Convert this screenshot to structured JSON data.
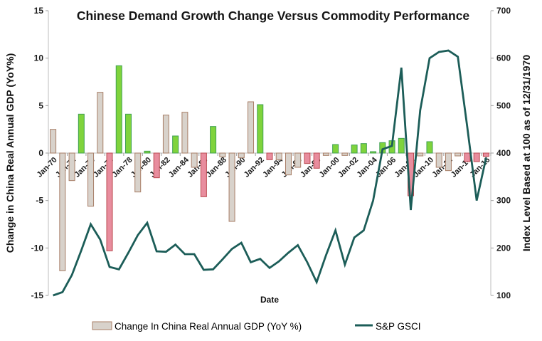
{
  "title": "Chinese Demand Growth Change Versus Commodity Performance",
  "background": "#FFFFFF",
  "palette": {
    "bar_tan_fill": "#D8D2CB",
    "bar_tan_stroke": "#A87E66",
    "bar_green_fill": "#7FD33C",
    "bar_green_stroke": "#3FA151",
    "bar_pink_fill": "#E88D9E",
    "bar_pink_stroke": "#BB4A50",
    "line_color": "#1C5D58",
    "axis_color": "#BDBDBD"
  },
  "chart_data": {
    "type": "combo-bar-line",
    "title": "Chinese Demand Growth Change Versus Commodity Performance",
    "years": [
      1970,
      1971,
      1972,
      1973,
      1974,
      1975,
      1976,
      1977,
      1978,
      1979,
      1980,
      1981,
      1982,
      1983,
      1984,
      1985,
      1986,
      1987,
      1988,
      1989,
      1990,
      1991,
      1992,
      1993,
      1994,
      1995,
      1996,
      1997,
      1998,
      1999,
      2000,
      2001,
      2002,
      2003,
      2004,
      2005,
      2006,
      2007,
      2008,
      2009,
      2010,
      2011,
      2012,
      2013,
      2014,
      2015,
      2016
    ],
    "bar_series": {
      "name": "Change In China Real Annual GDP (YoY %)",
      "axis": "left",
      "values": [
        2.5,
        -12.4,
        -2.9,
        4.1,
        -5.6,
        6.4,
        -10.3,
        9.2,
        4.1,
        -4.1,
        0.2,
        -2.6,
        4.0,
        1.8,
        4.3,
        -1.5,
        -4.6,
        2.8,
        -0.4,
        -7.2,
        -0.5,
        5.4,
        5.1,
        -0.7,
        -0.7,
        -2.3,
        -1.5,
        -1.1,
        -1.6,
        -0.25,
        0.9,
        -0.25,
        0.85,
        1.0,
        0.15,
        1.1,
        1.3,
        1.55,
        -4.5,
        -0.3,
        1.2,
        -1.5,
        -1.85,
        -0.3,
        -0.9,
        -0.9,
        -0.35
      ],
      "color_keys": [
        "tan",
        "tan",
        "tan",
        "green",
        "tan",
        "tan",
        "pink",
        "green",
        "green",
        "tan",
        "green",
        "pink",
        "tan",
        "green",
        "tan",
        "tan",
        "pink",
        "green",
        "tan",
        "tan",
        "tan",
        "tan",
        "green",
        "pink",
        "tan",
        "tan",
        "tan",
        "pink",
        "pink",
        "tan",
        "green",
        "tan",
        "green",
        "green",
        "green",
        "green",
        "green",
        "green",
        "pink",
        "tan",
        "green",
        "tan",
        "tan",
        "tan",
        "pink",
        "pink",
        "pink"
      ]
    },
    "line_series": {
      "name": "S&P GSCI",
      "axis": "right",
      "values": [
        100,
        107,
        143,
        195,
        250,
        218,
        160,
        155,
        190,
        227,
        253,
        193,
        192,
        207,
        187,
        187,
        154,
        155,
        176,
        198,
        211,
        170,
        177,
        158,
        172,
        190,
        206,
        170,
        128,
        185,
        237,
        165,
        222,
        237,
        300,
        408,
        415,
        580,
        280,
        490,
        600,
        613,
        616,
        603,
        455,
        300,
        390
      ]
    },
    "x_axis": {
      "label": "Date",
      "tick_labels": [
        "Jan-70",
        "Jan-72",
        "Jan-74",
        "Jan-76",
        "Jan-78",
        "Jan-80",
        "Jan-82",
        "Jan-84",
        "Jan-86",
        "Jan-88",
        "Jan-90",
        "Jan-92",
        "Jan-94",
        "Jan-96",
        "Jan-98",
        "Jan-00",
        "Jan-02",
        "Jan-04",
        "Jan-06",
        "Jan-08",
        "Jan-10",
        "Jan-12",
        "Jan-14",
        "Jan-16"
      ]
    },
    "left_axis": {
      "label": "Change in China Real Annual GDP (YoY%)",
      "min": -15,
      "max": 15,
      "ticks": [
        15,
        10,
        5,
        0,
        -5,
        -10,
        -15
      ]
    },
    "right_axis": {
      "label": "Index Level Based at 100 as of 12/31/1970",
      "min": 100,
      "max": 700,
      "ticks": [
        700,
        600,
        500,
        400,
        300,
        200,
        100
      ]
    },
    "legend_position": "bottom",
    "grid": "zero-line-only"
  }
}
